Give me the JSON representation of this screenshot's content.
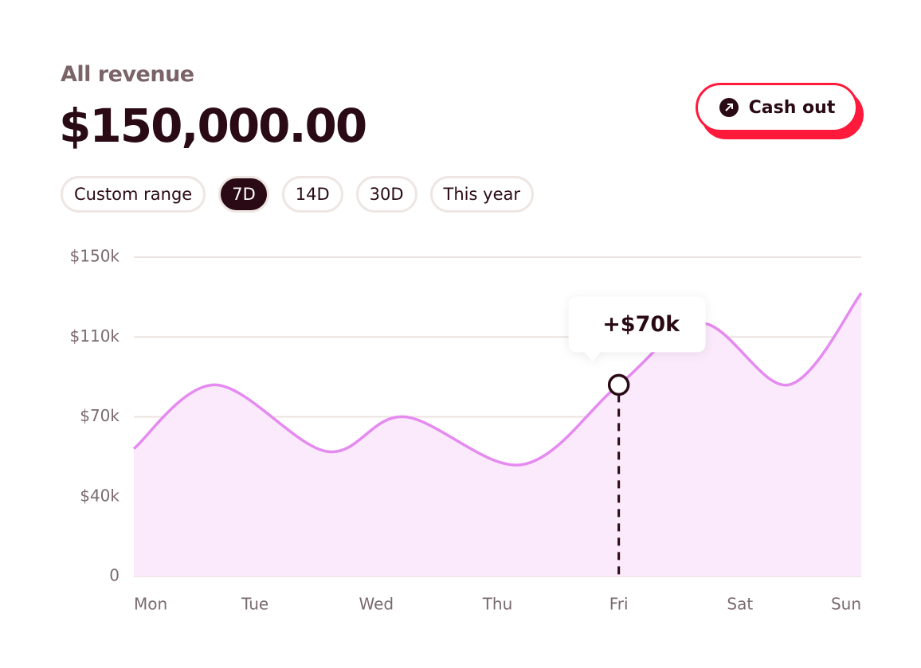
{
  "header": {
    "label": "All revenue",
    "amount": "$150,000.00"
  },
  "button": "Cash out",
  "filters": [
    "Custom range",
    "7D",
    "14D",
    "30D",
    "This year"
  ],
  "active_filter": 1,
  "chart_data": {
    "type": "line",
    "x": [
      0,
      0.67,
      1.59,
      2.23,
      3.2,
      4,
      4.68,
      5.4,
      6
    ],
    "series": [
      {
        "color": "#e58af0",
        "values": [
          58000,
          86000,
          57000,
          70000,
          52000,
          86000,
          117000,
          86000,
          132000
        ]
      }
    ],
    "area_color": "#fbeafb",
    "xlim": [
      0,
      6
    ],
    "xticks": [
      {
        "value": 0,
        "label": "Mon"
      },
      {
        "value": 1,
        "label": "Tue"
      },
      {
        "value": 2,
        "label": "Wed"
      },
      {
        "value": 3,
        "label": "Thu"
      },
      {
        "value": 4,
        "label": "Fri"
      },
      {
        "value": 5,
        "label": "Sat"
      },
      {
        "value": 6,
        "label": "Sun"
      }
    ],
    "ylim": [
      0,
      150000
    ],
    "yticks": [
      {
        "value": 0,
        "label": "0"
      },
      {
        "value": 40000,
        "label": "$40k"
      },
      {
        "value": 70000,
        "label": "$70k"
      },
      {
        "value": 110000,
        "label": "$110k"
      },
      {
        "value": 150000,
        "label": "$150k"
      }
    ],
    "grid": true,
    "highlight_index": 5,
    "annotation": "+$70k"
  }
}
